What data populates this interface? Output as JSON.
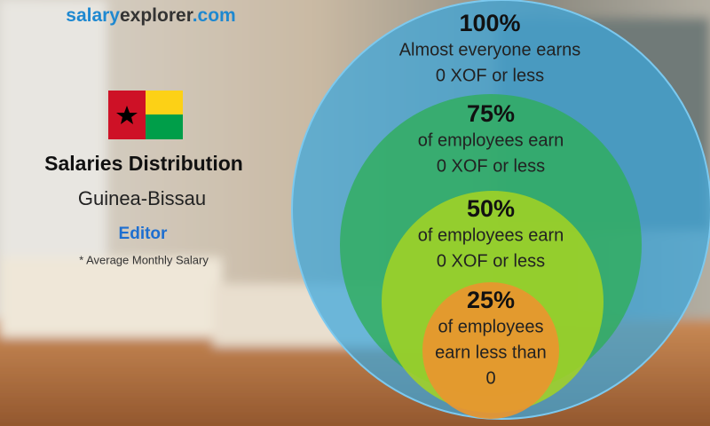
{
  "brand": {
    "salary": "salary",
    "explorer": "explorer",
    "com": ".com"
  },
  "header": {
    "title": "Salaries Distribution",
    "country": "Guinea-Bissau",
    "job": "Editor",
    "note": "* Average Monthly Salary"
  },
  "levels": [
    {
      "percent": "100%",
      "lines": [
        "Almost everyone earns",
        "0 XOF or less"
      ]
    },
    {
      "percent": "75%",
      "lines": [
        "of employees earn",
        "0 XOF or less"
      ]
    },
    {
      "percent": "50%",
      "lines": [
        "of employees earn",
        "0 XOF or less"
      ]
    },
    {
      "percent": "25%",
      "lines": [
        "of employees",
        "earn less than",
        "0"
      ]
    }
  ]
}
